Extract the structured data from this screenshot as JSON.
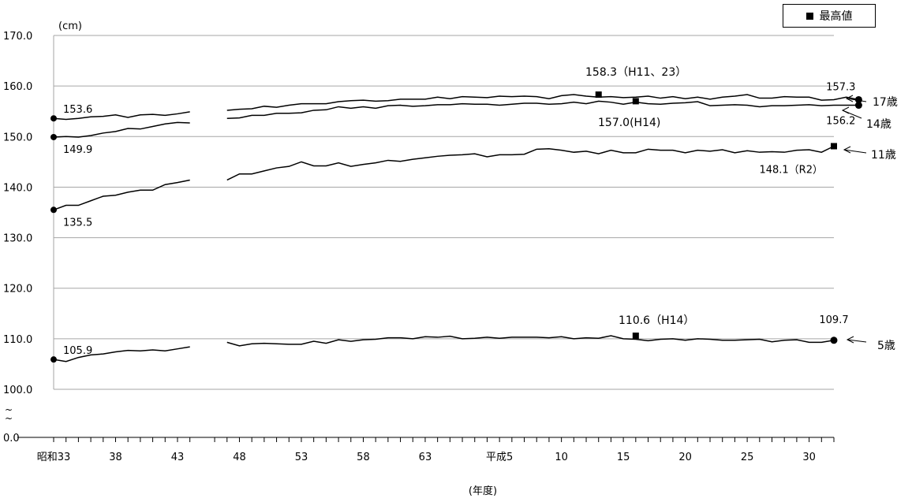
{
  "legend": {
    "label": "最高値",
    "marker_icon": "black-square-icon"
  },
  "colors": {
    "line": "#000000",
    "grid": "#a6a6a6"
  },
  "chart_data": {
    "type": "line",
    "unit_label": "(cm)",
    "xlabel": "(年度)",
    "y_tick_labels": [
      "0.0",
      "100.0",
      "110.0",
      "120.0",
      "130.0",
      "140.0",
      "150.0",
      "160.0",
      "170.0"
    ],
    "y_range_visible": [
      100,
      170
    ],
    "axis_break": true,
    "grid": "horizontal",
    "x_tick_labels": [
      {
        "year": 33,
        "label": "昭和33"
      },
      {
        "year": 38,
        "label": "38"
      },
      {
        "year": 43,
        "label": "43"
      },
      {
        "year": 48,
        "label": "48"
      },
      {
        "year": 53,
        "label": "53"
      },
      {
        "year": 58,
        "label": "58"
      },
      {
        "year": 63,
        "label": "63"
      },
      {
        "year": 69,
        "label": "平成5"
      },
      {
        "year": 74,
        "label": "10"
      },
      {
        "year": 79,
        "label": "15"
      },
      {
        "year": 84,
        "label": "20"
      },
      {
        "year": 89,
        "label": "25"
      },
      {
        "year": 94,
        "label": "30"
      }
    ],
    "x_range": [
      33,
      96
    ],
    "gap_after_year": 44,
    "series": [
      {
        "name": "17歳",
        "start_year": 33,
        "values": [
          153.6,
          153.4,
          153.6,
          153.9,
          154.0,
          154.3,
          153.8,
          154.3,
          154.4,
          154.2,
          154.5,
          154.9,
          null,
          155.2,
          155.4,
          155.5,
          156.0,
          155.8,
          156.2,
          156.5,
          156.5,
          156.5,
          156.9,
          157.1,
          157.2,
          157.0,
          157.1,
          157.4,
          157.4,
          157.4,
          157.8,
          157.5,
          157.9,
          157.8,
          157.7,
          158.0,
          157.9,
          158.0,
          157.9,
          157.5,
          158.1,
          158.3,
          158.0,
          157.8,
          157.9,
          157.7,
          157.8,
          158.0,
          157.6,
          157.9,
          157.5,
          157.8,
          157.4,
          157.8,
          158.0,
          158.3,
          157.6,
          157.6,
          157.9,
          157.8,
          157.8,
          157.2,
          157.3,
          157.8,
          157.3
        ],
        "start_label": "153.6",
        "end_label": "157.3",
        "max": {
          "year": 44,
          "value": 158.3,
          "label": "158.3（H11、23）",
          "marker_year": 44
        },
        "max_year_index": 41,
        "arrow_label": "17歳"
      },
      {
        "name": "14歳",
        "start_year": 33,
        "values": [
          149.9,
          150.0,
          149.9,
          150.2,
          150.7,
          151.0,
          151.6,
          151.5,
          152.0,
          152.5,
          152.8,
          152.7,
          null,
          153.6,
          153.7,
          154.2,
          154.2,
          154.6,
          154.6,
          154.7,
          155.2,
          155.3,
          155.9,
          155.6,
          155.9,
          155.6,
          156.1,
          156.2,
          156.0,
          156.1,
          156.3,
          156.3,
          156.5,
          156.4,
          156.4,
          156.2,
          156.4,
          156.6,
          156.6,
          156.4,
          156.5,
          156.8,
          156.5,
          157.0,
          156.8,
          156.4,
          156.8,
          156.5,
          156.4,
          156.6,
          156.7,
          156.9,
          156.1,
          156.2,
          156.3,
          156.2,
          155.9,
          156.1,
          156.1,
          156.2,
          156.3,
          156.1,
          156.2,
          156.2,
          156.2
        ],
        "start_label": "149.9",
        "end_label": "156.2",
        "max": {
          "value": 157.0,
          "label": "157.0(H14)"
        },
        "max_year_index": 43,
        "arrow_label": "14歳"
      },
      {
        "name": "11歳",
        "start_year": 33,
        "values": [
          135.5,
          136.4,
          136.4,
          137.3,
          138.2,
          138.4,
          139.0,
          139.4,
          139.4,
          140.5,
          140.9,
          141.4,
          null,
          141.4,
          142.6,
          142.6,
          143.2,
          143.8,
          144.1,
          145.0,
          144.2,
          144.2,
          144.8,
          144.1,
          144.5,
          144.8,
          145.3,
          145.1,
          145.5,
          145.8,
          146.1,
          146.3,
          146.4,
          146.6,
          146.0,
          146.4,
          146.4,
          146.5,
          147.5,
          147.6,
          147.3,
          146.9,
          147.1,
          146.6,
          147.3,
          146.8,
          146.8,
          147.5,
          147.3,
          147.3,
          146.8,
          147.3,
          147.1,
          147.4,
          146.8,
          147.2,
          146.9,
          147.0,
          146.9,
          147.3,
          147.4,
          146.9,
          148.1
        ],
        "start_label": "135.5",
        "end_label": "148.1（R2）",
        "max": {
          "value": 148.1,
          "label": "148.1（R2）"
        },
        "arrow_label": "11歳"
      },
      {
        "name": "5歳",
        "start_year": 33,
        "values": [
          105.9,
          105.5,
          106.3,
          106.8,
          107.0,
          107.4,
          107.7,
          107.6,
          107.8,
          107.6,
          108.0,
          108.4,
          null,
          109.3,
          108.6,
          109.0,
          109.1,
          109.0,
          108.9,
          108.9,
          109.5,
          109.1,
          109.8,
          109.5,
          109.8,
          109.9,
          110.2,
          110.2,
          110.0,
          110.4,
          110.3,
          110.5,
          110.0,
          110.1,
          110.3,
          110.1,
          110.3,
          110.3,
          110.3,
          110.2,
          110.4,
          110.0,
          110.2,
          110.1,
          110.6,
          110.0,
          109.9,
          109.6,
          109.9,
          110.0,
          109.7,
          110.0,
          109.9,
          109.7,
          109.7,
          109.8,
          109.9,
          109.4,
          109.7,
          109.8,
          109.3,
          109.3,
          109.7
        ],
        "start_label": "105.9",
        "end_label": "109.7",
        "max": {
          "value": 110.6,
          "label": "110.6（H14）"
        },
        "arrow_label": "5歳"
      }
    ]
  }
}
